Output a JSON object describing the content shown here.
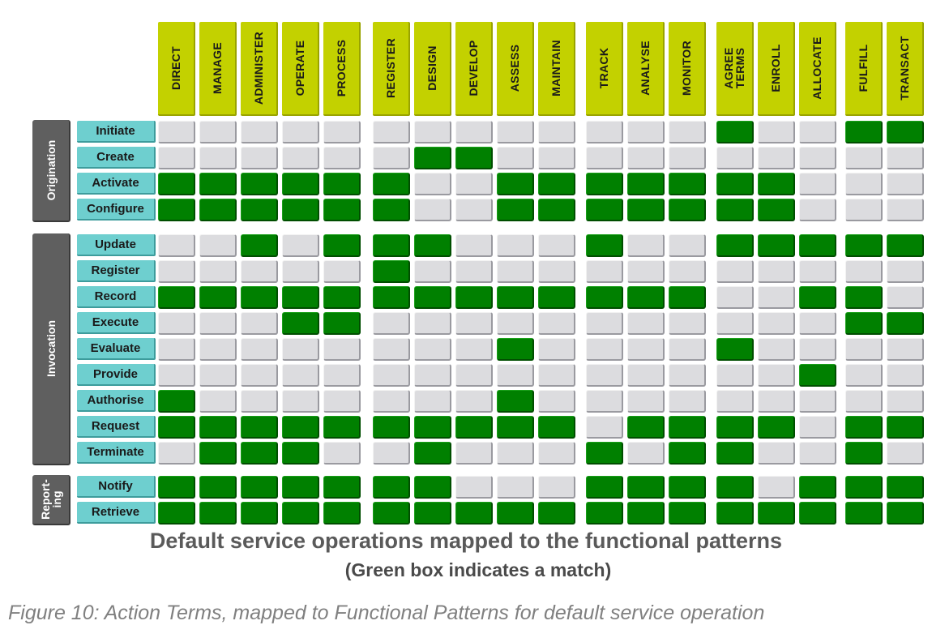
{
  "columns": [
    "DIRECT",
    "MANAGE",
    "ADMINISTER",
    "OPERATE",
    "PROCESS",
    "REGISTER",
    "DESIGN",
    "DEVELOP",
    "ASSESS",
    "MAINTAIN",
    "TRACK",
    "ANALYSE",
    "MONITOR",
    "AGREE\nTERMS",
    "ENROLL",
    "ALLOCATE",
    "FULFILL",
    "TRANSACT"
  ],
  "groups": [
    {
      "label": "Origination"
    },
    {
      "label": "Invocation"
    },
    {
      "label": "Report-\ning"
    }
  ],
  "rows": [
    {
      "label": "Initiate",
      "matches": "000000000000010011"
    },
    {
      "label": "Create",
      "matches": "000000110000000000"
    },
    {
      "label": "Activate",
      "matches": "111111001111111000"
    },
    {
      "label": "Configure",
      "matches": "111111001111111000"
    },
    {
      "label": "Update",
      "matches": "001011100010011111"
    },
    {
      "label": "Register",
      "matches": "000001000000000000"
    },
    {
      "label": "Record",
      "matches": "111111111111100110"
    },
    {
      "label": "Execute",
      "matches": "000110000000000011"
    },
    {
      "label": "Evaluate",
      "matches": "000000001000010000"
    },
    {
      "label": "Provide",
      "matches": "000000000000000100"
    },
    {
      "label": "Authorise",
      "matches": "100000001000000000"
    },
    {
      "label": "Request",
      "matches": "111111111101111011"
    },
    {
      "label": "Terminate",
      "matches": "011100100010110010"
    },
    {
      "label": "Notify",
      "matches": "111111100011110111"
    },
    {
      "label": "Retrieve",
      "matches": "111111111111111111"
    }
  ],
  "title": "Default service operations mapped to the functional patterns",
  "subtitle": "(Green box indicates a match)",
  "caption": "Figure 10: Action Terms, mapped to Functional Patterns for default service operation",
  "colors": {
    "match": "#008000",
    "no_match": "#dcdcdf",
    "header": "#c3d100",
    "row_label": "#6ecfcf",
    "group": "#5f5f5f"
  }
}
